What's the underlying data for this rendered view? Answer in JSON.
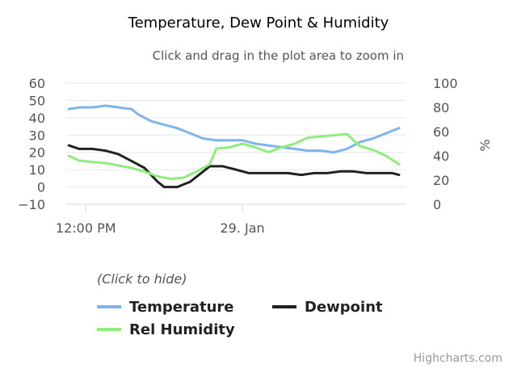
{
  "chart_data": {
    "type": "line",
    "title": "Temperature, Dew Point & Humidity",
    "subtitle": "Click and drag in the plot area to zoom in",
    "x_axis": {
      "range_hours": [
        -1.5,
        24.5
      ],
      "ticks": [
        {
          "label": "12:00 PM",
          "hour": 0
        },
        {
          "label": "29. Jan",
          "hour": 12
        }
      ]
    },
    "y_axis_left": {
      "range": [
        -10,
        60
      ],
      "ticks": [
        "60",
        "50",
        "40",
        "30",
        "20",
        "10",
        "0",
        "−10"
      ],
      "tick_values": [
        60,
        50,
        40,
        30,
        20,
        10,
        0,
        -10
      ]
    },
    "y_axis_right": {
      "title": "%",
      "range": [
        0,
        100
      ],
      "ticks": [
        "100",
        "80",
        "60",
        "40",
        "20",
        "0"
      ],
      "tick_values": [
        100,
        80,
        60,
        40,
        20,
        0
      ]
    },
    "legend_hint": "(Click to hide)",
    "series": [
      {
        "name": "Temperature",
        "color": "#7cb5ec",
        "axis": "left",
        "points": [
          [
            -1.3,
            45
          ],
          [
            -0.5,
            46
          ],
          [
            0.5,
            46
          ],
          [
            1.5,
            47
          ],
          [
            2.5,
            46
          ],
          [
            3.5,
            45
          ],
          [
            4,
            42
          ],
          [
            5,
            38
          ],
          [
            6,
            36
          ],
          [
            7,
            34
          ],
          [
            8,
            31
          ],
          [
            9,
            28
          ],
          [
            10,
            27
          ],
          [
            12,
            27
          ],
          [
            13,
            25
          ],
          [
            14,
            24
          ],
          [
            15,
            23
          ],
          [
            16,
            22
          ],
          [
            17,
            21
          ],
          [
            18,
            21
          ],
          [
            19,
            20
          ],
          [
            20,
            22
          ],
          [
            21,
            26
          ],
          [
            22,
            28
          ],
          [
            23,
            31
          ],
          [
            24,
            34
          ]
        ]
      },
      {
        "name": "Dewpoint",
        "color": "#222222",
        "axis": "left",
        "points": [
          [
            -1.3,
            24
          ],
          [
            -0.5,
            22
          ],
          [
            0.5,
            22
          ],
          [
            1.5,
            21
          ],
          [
            2.5,
            19
          ],
          [
            3.5,
            15
          ],
          [
            4.5,
            11
          ],
          [
            5.5,
            3
          ],
          [
            6,
            0
          ],
          [
            7,
            0
          ],
          [
            8,
            3
          ],
          [
            9,
            9
          ],
          [
            9.5,
            12
          ],
          [
            10.5,
            12
          ],
          [
            11.5,
            10
          ],
          [
            12.5,
            8
          ],
          [
            13.5,
            8
          ],
          [
            14.5,
            8
          ],
          [
            15.5,
            8
          ],
          [
            16.5,
            7
          ],
          [
            17.5,
            8
          ],
          [
            18.5,
            8
          ],
          [
            19.5,
            9
          ],
          [
            20.5,
            9
          ],
          [
            21.5,
            8
          ],
          [
            22.5,
            8
          ],
          [
            23.5,
            8
          ],
          [
            24,
            7
          ]
        ]
      },
      {
        "name": "Rel Humidity",
        "color": "#90ed7d",
        "axis": "right",
        "points": [
          [
            -1.3,
            40
          ],
          [
            -0.5,
            36
          ],
          [
            0.5,
            35
          ],
          [
            1.5,
            34
          ],
          [
            2.5,
            32
          ],
          [
            3.5,
            30
          ],
          [
            4.5,
            27
          ],
          [
            5.5,
            23
          ],
          [
            6.5,
            21
          ],
          [
            7.5,
            22
          ],
          [
            8.5,
            27
          ],
          [
            9.5,
            33
          ],
          [
            10,
            46
          ],
          [
            11,
            47
          ],
          [
            12,
            50
          ],
          [
            13,
            47
          ],
          [
            14,
            43
          ],
          [
            15,
            47
          ],
          [
            16,
            50
          ],
          [
            17,
            55
          ],
          [
            18,
            56
          ],
          [
            19,
            57
          ],
          [
            20,
            58
          ],
          [
            21,
            48
          ],
          [
            22,
            45
          ],
          [
            23,
            40
          ],
          [
            24,
            33
          ]
        ]
      }
    ],
    "credits": "Highcharts.com"
  }
}
